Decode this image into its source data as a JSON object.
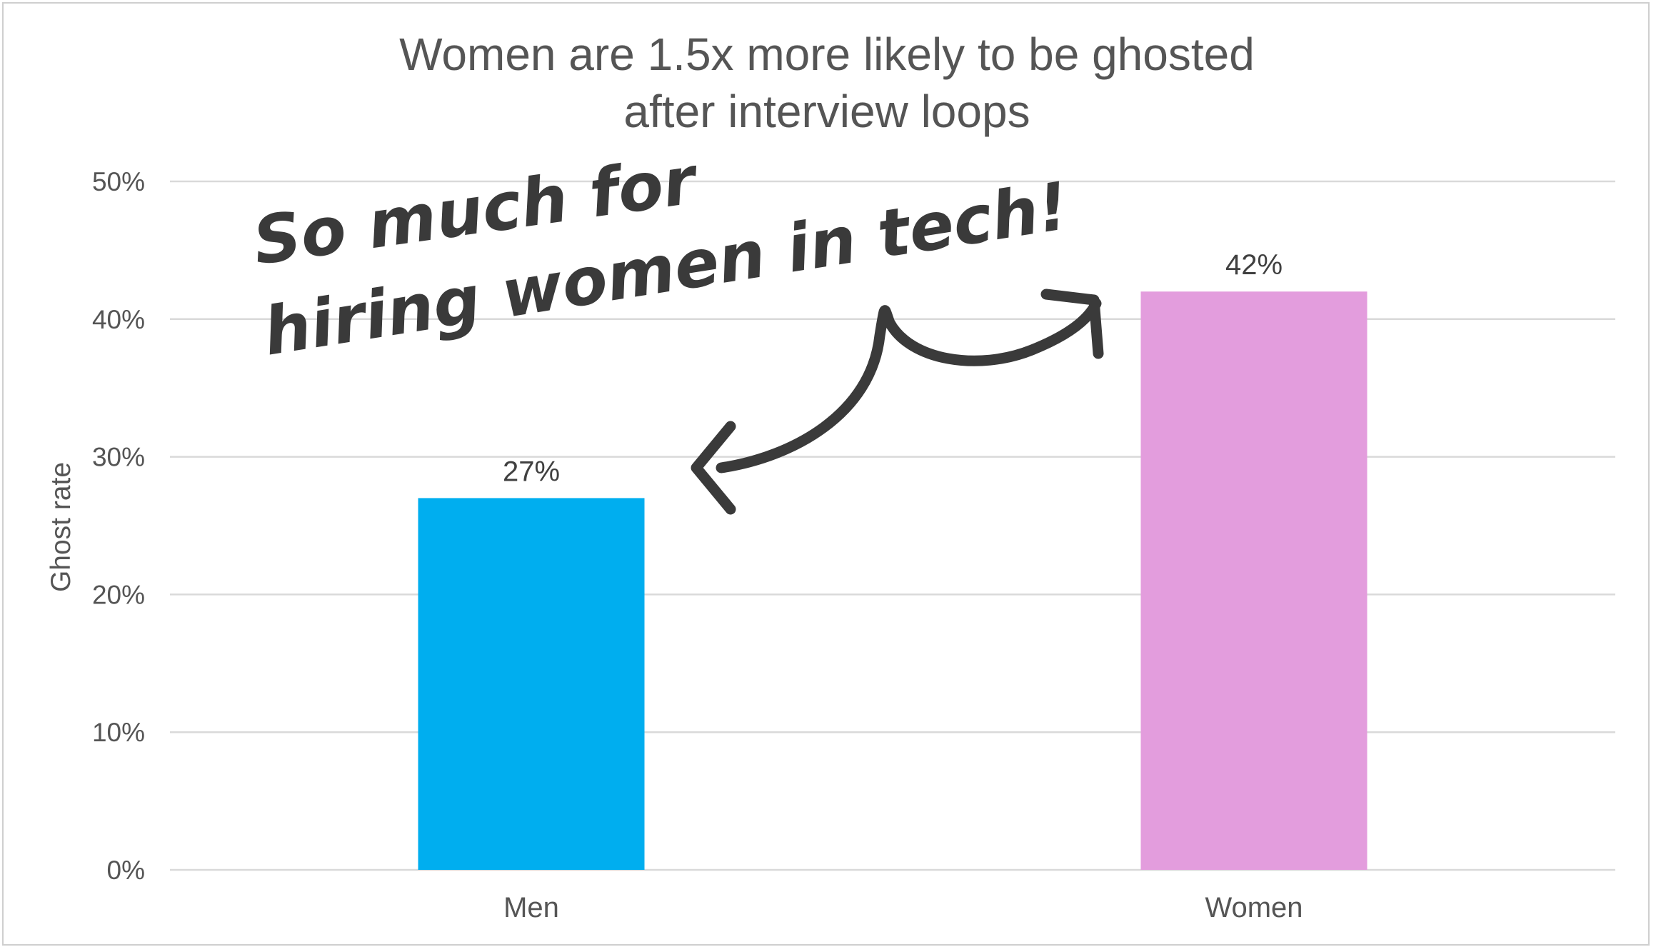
{
  "chart_data": {
    "type": "bar",
    "title": [
      "Women are 1.5x more likely to be ghosted",
      "after interview loops"
    ],
    "ylabel": "Ghost rate",
    "xlabel": "",
    "categories": [
      "Men",
      "Women"
    ],
    "values": [
      27,
      42
    ],
    "value_labels": [
      "27%",
      "42%"
    ],
    "colors": [
      "#00AEEF",
      "#E39DDD"
    ],
    "ylim": [
      0,
      50
    ],
    "yticks": [
      0,
      10,
      20,
      30,
      40,
      50
    ],
    "ytick_labels": [
      "0%",
      "10%",
      "20%",
      "30%",
      "40%",
      "50%"
    ],
    "grid": true,
    "legend": "none",
    "annotation": {
      "text": "So much for hiring women in tech!",
      "style": "handwritten",
      "arrow": "double-headed, between the two bars"
    }
  }
}
